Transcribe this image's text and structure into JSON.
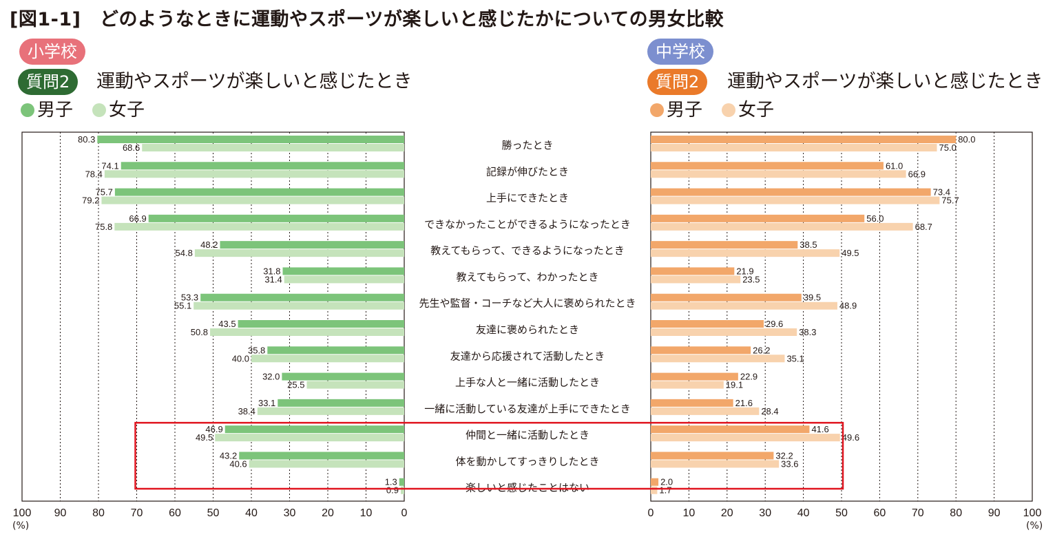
{
  "title": "[図1-1]　どのようなときに運動やスポーツが楽しいと感じたかについての男女比較",
  "left_panel": {
    "school": "小学校",
    "question_tag": "質問2",
    "question_text": "運動やスポーツが楽しいと感じたとき",
    "legend_male": "男子",
    "legend_female": "女子"
  },
  "right_panel": {
    "school": "中学校",
    "question_tag": "質問2",
    "question_text": "運動やスポーツが楽しいと感じたとき",
    "legend_male": "男子",
    "legend_female": "女子"
  },
  "unit_label": "(%)",
  "colors": {
    "elem_male": "#7cc47a",
    "elem_female": "#c5e3bb",
    "jh_male": "#f2a76a",
    "jh_female": "#f8d2ad",
    "elem_school_pill": "#e8717a",
    "jh_school_pill": "#7c8fcf",
    "elem_question_pill": "#2e6b33",
    "jh_question_pill": "#ea7a2a",
    "highlight": "#e0141e"
  },
  "chart_data": {
    "type": "bar",
    "orientation": "horizontal-butterfly",
    "categories": [
      "勝ったとき",
      "記録が伸びたとき",
      "上手にできたとき",
      "できなかったことができるようになったとき",
      "教えてもらって、できるようになったとき",
      "教えてもらって、わかったとき",
      "先生や監督・コーチなど大人に褒められたとき",
      "友達に褒められたとき",
      "友達から応援されて活動したとき",
      "上手な人と一緒に活動したとき",
      "一緒に活動している友達が上手にできたとき",
      "仲間と一緒に活動したとき",
      "体を動かしてすっきりしたとき",
      "楽しいと感じたことはない"
    ],
    "series": [
      {
        "name": "小学校 男子",
        "panel": "left",
        "values": [
          80.3,
          74.1,
          75.7,
          66.9,
          48.2,
          31.8,
          53.3,
          43.5,
          35.8,
          32.0,
          33.1,
          46.9,
          43.2,
          1.3
        ]
      },
      {
        "name": "小学校 女子",
        "panel": "left",
        "values": [
          68.6,
          78.4,
          79.2,
          75.8,
          54.8,
          31.4,
          55.1,
          50.8,
          40.0,
          25.5,
          38.4,
          49.5,
          40.6,
          0.9
        ]
      },
      {
        "name": "中学校 男子",
        "panel": "right",
        "values": [
          80.0,
          61.0,
          73.4,
          56.0,
          38.5,
          21.9,
          39.5,
          29.6,
          26.2,
          22.9,
          21.6,
          41.6,
          32.2,
          2.0
        ]
      },
      {
        "name": "中学校 女子",
        "panel": "right",
        "values": [
          75.0,
          66.9,
          75.7,
          68.7,
          49.5,
          23.5,
          48.9,
          38.3,
          35.1,
          19.1,
          28.4,
          49.6,
          33.6,
          1.7
        ]
      }
    ],
    "left_xticks": [
      "100",
      "90",
      "80",
      "70",
      "60",
      "50",
      "40",
      "30",
      "20",
      "10",
      "0"
    ],
    "right_xticks": [
      "0",
      "10",
      "20",
      "30",
      "40",
      "50",
      "60",
      "70",
      "80",
      "90",
      "100"
    ],
    "xlim": [
      0,
      100
    ],
    "xlabel": "(%)",
    "highlight_categories": [
      "仲間と一緒に活動したとき",
      "体を動かしてすっきりしたとき",
      "楽しいと感じたことはない"
    ]
  }
}
